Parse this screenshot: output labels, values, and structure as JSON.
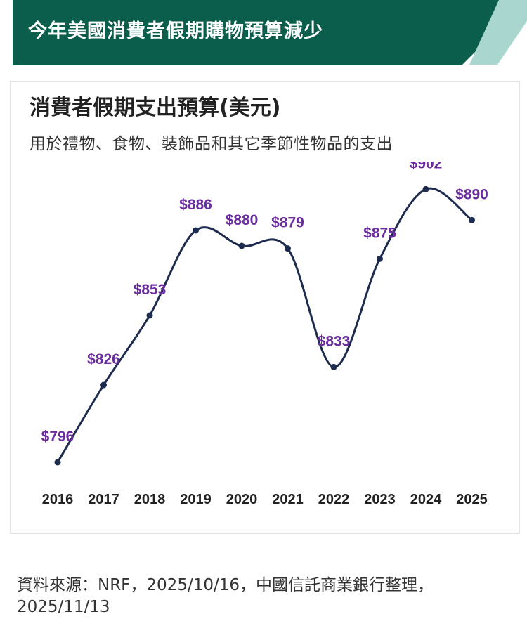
{
  "header": {
    "title": "今年美國消費者假期購物預算減少"
  },
  "colors": {
    "banner_bg": "#0b5e4c",
    "banner_stripe": "#a9d7cf",
    "line": "#1d2b4f",
    "data_label": "#6a2d9e"
  },
  "chart_data": {
    "type": "line",
    "title": "消費者假期支出預算(美元)",
    "subtitle": "用於禮物、食物、裝飾品和其它季節性物品的支出",
    "categories": [
      "2016",
      "2017",
      "2018",
      "2019",
      "2020",
      "2021",
      "2022",
      "2023",
      "2024",
      "2025"
    ],
    "values": [
      796,
      826,
      853,
      886,
      880,
      879,
      833,
      875,
      902,
      890
    ],
    "data_labels": [
      "$796",
      "$826",
      "$853",
      "$886",
      "$880",
      "$879",
      "$833",
      "$875",
      "$902",
      "$890"
    ],
    "ylim": [
      790,
      910
    ],
    "grid": false,
    "legend": "none"
  },
  "footer": {
    "source": "資料來源：NRF，2025/10/16，中國信託商業銀行整理，2025/11/13"
  }
}
